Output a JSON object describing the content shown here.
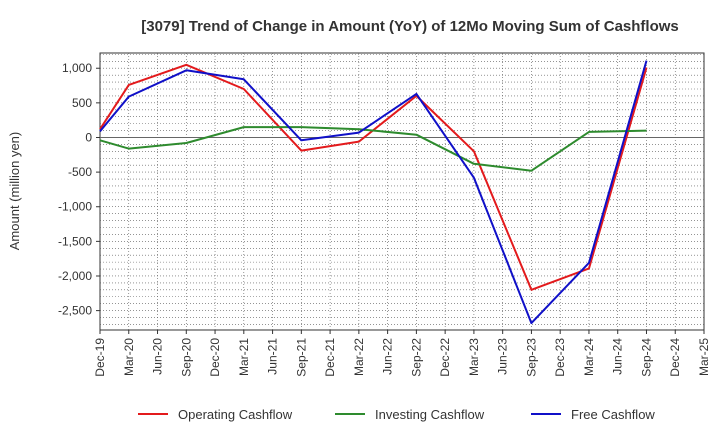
{
  "chart_data": {
    "type": "line",
    "title": "[3079]  Trend of Change in Amount (YoY) of 12Mo Moving Sum of Cashflows",
    "xlabel": "",
    "ylabel": "Amount (million yen)",
    "ylim": [
      -2780,
      1220
    ],
    "yticks": [
      1000,
      500,
      0,
      -500,
      -1000,
      -1500,
      -2000,
      -2500
    ],
    "ytick_labels": [
      "1,000",
      "500",
      "0",
      "-500",
      "-1,000",
      "-1,500",
      "-2,000",
      "-2,500"
    ],
    "categories": [
      "Dec-19",
      "Mar-20",
      "Jun-20",
      "Sep-20",
      "Dec-20",
      "Mar-21",
      "Jun-21",
      "Sep-21",
      "Dec-21",
      "Mar-22",
      "Jun-22",
      "Sep-22",
      "Dec-22",
      "Mar-23",
      "Jun-23",
      "Sep-23",
      "Dec-23",
      "Mar-24",
      "Jun-24",
      "Sep-24",
      "Dec-24",
      "Mar-25"
    ],
    "legend_position": "bottom",
    "series": [
      {
        "name": "Operating Cashflow",
        "color": "#e31a1c",
        "values": [
          120,
          760,
          null,
          1050,
          null,
          700,
          null,
          -190,
          null,
          -60,
          null,
          600,
          null,
          -200,
          null,
          -2200,
          null,
          -1890,
          null,
          1010,
          null,
          null
        ]
      },
      {
        "name": "Investing Cashflow",
        "color": "#2e8b2e",
        "values": [
          -40,
          -160,
          null,
          -80,
          null,
          150,
          null,
          150,
          null,
          120,
          null,
          40,
          null,
          -380,
          null,
          -480,
          null,
          80,
          null,
          100,
          null,
          null
        ]
      },
      {
        "name": "Free Cashflow",
        "color": "#1010c8",
        "values": [
          90,
          590,
          null,
          970,
          null,
          840,
          null,
          -40,
          null,
          70,
          null,
          630,
          null,
          -580,
          null,
          -2680,
          null,
          -1810,
          null,
          1110,
          null,
          null
        ]
      }
    ]
  }
}
